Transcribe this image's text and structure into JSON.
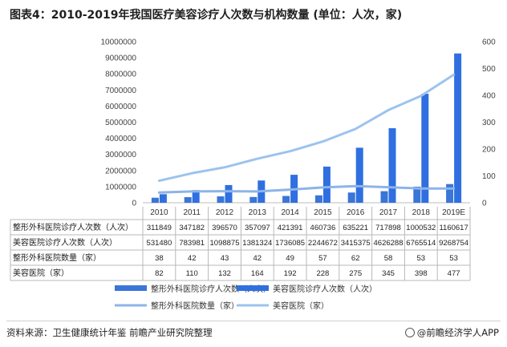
{
  "chart_data": {
    "type": "bar",
    "title": "图表4：2010-2019年我国医疗美容诊疗人次数与机构数量 (单位：人次，家)",
    "categories": [
      "2010",
      "2011",
      "2012",
      "2013",
      "2014",
      "2015",
      "2016",
      "2017",
      "2018",
      "2019E"
    ],
    "ylim_left": [
      0,
      10000000
    ],
    "ylim_right": [
      0,
      600
    ],
    "left_ticks": [
      "0",
      "1000000",
      "2000000",
      "3000000",
      "4000000",
      "5000000",
      "6000000",
      "7000000",
      "8000000",
      "9000000",
      "10000000"
    ],
    "right_ticks": [
      "0",
      "100",
      "200",
      "300",
      "400",
      "500",
      "600"
    ],
    "series": [
      {
        "name": "整形外科医院诊疗人次数（人次）",
        "kind": "bar",
        "axis": "left",
        "color": "#3a75d8",
        "values": [
          311849,
          347182,
          396570,
          357097,
          421391,
          460736,
          635221,
          717898,
          1000532,
          1160617
        ],
        "labels": [
          "311849",
          "347182",
          "396570",
          "357097",
          "421391",
          "460736",
          "635221",
          "717898",
          "1000532",
          "1160617"
        ]
      },
      {
        "name": "美容医院诊疗人次数（人次）",
        "kind": "bar",
        "axis": "left",
        "color": "#2f6fe0",
        "values": [
          531480,
          783981,
          1098875,
          1381324,
          1736085,
          2244672,
          3415375,
          4626288,
          6765514,
          9268754
        ],
        "labels": [
          "531480",
          "783981",
          "1098875",
          "1381324",
          "1736085",
          "2244672",
          "3415375",
          "4626288",
          "6765514",
          "9268754"
        ]
      },
      {
        "name": "整形外科医院数量（家）",
        "kind": "line",
        "axis": "right",
        "color": "#8db4e8",
        "values": [
          38,
          42,
          43,
          42,
          49,
          57,
          62,
          58,
          53,
          53
        ],
        "labels": [
          "38",
          "42",
          "43",
          "42",
          "49",
          "57",
          "62",
          "58",
          "53",
          "53"
        ]
      },
      {
        "name": "美容医院（家）",
        "kind": "line",
        "axis": "right",
        "color": "#9cc3ee",
        "values": [
          82,
          110,
          132,
          164,
          192,
          228,
          275,
          345,
          398,
          477
        ],
        "labels": [
          "82",
          "110",
          "132",
          "164",
          "192",
          "228",
          "275",
          "345",
          "398",
          "477"
        ]
      }
    ],
    "table_row_labels": [
      "整形外科医院诊疗人次数（人次）",
      "美容医院诊疗人次数（人次）",
      "整形外科医院数量（家）",
      "美容医院（家）"
    ],
    "legend": [
      {
        "label": "整形外科医院诊疗人次数（人次）",
        "marker": "bar"
      },
      {
        "label": "美容医院诊疗人次数（人次）",
        "marker": "bar"
      },
      {
        "label": "整形外科医院数量（家）",
        "marker": "line"
      },
      {
        "label": "美容医院（家）",
        "marker": "line"
      }
    ],
    "legend_position": "bottom",
    "grid": false
  },
  "footer": {
    "source": "资料来源：卫生健康统计年鉴 前瞻产业研究院整理",
    "brand": "@前瞻经济学人APP"
  },
  "colors": {
    "bar_a": "#3a75d8",
    "bar_b": "#2f6fe0",
    "line_a": "#8db4e8",
    "line_b": "#9cc3ee",
    "table_border": "#b8b8b8"
  }
}
